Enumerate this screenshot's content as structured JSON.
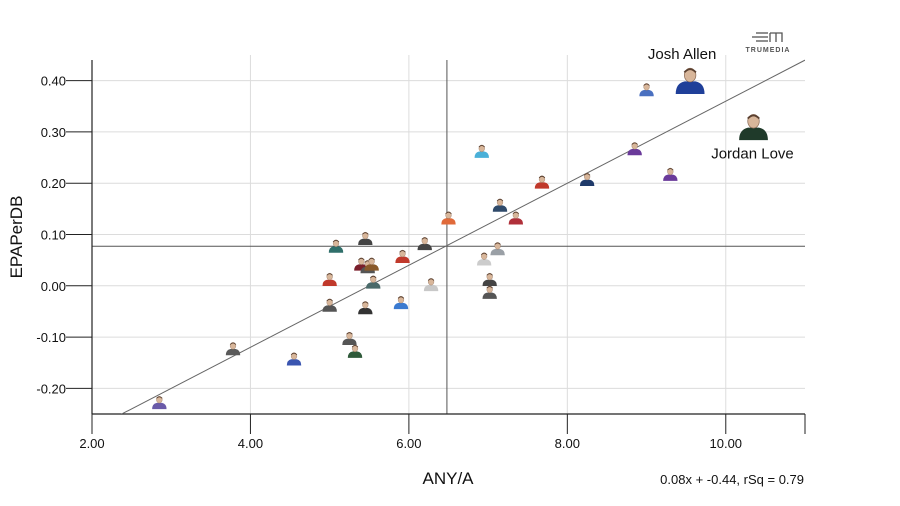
{
  "chart_data": {
    "type": "scatter",
    "xlabel": "ANY/A",
    "ylabel": "EPAPerDB",
    "xlim": [
      2.0,
      11.0
    ],
    "ylim": [
      -0.25,
      0.45
    ],
    "x_ticks": [
      2.0,
      4.0,
      6.0,
      8.0,
      10.0
    ],
    "x_tick_labels": [
      "2.00",
      "4.00",
      "6.00",
      "8.00",
      "10.00"
    ],
    "y_ticks": [
      -0.2,
      -0.1,
      0.0,
      0.1,
      0.2,
      0.3,
      0.4
    ],
    "y_tick_labels": [
      "-0.20",
      "-0.10",
      "0.00",
      "0.10",
      "0.20",
      "0.30",
      "0.40"
    ],
    "grid": true,
    "reference_lines": {
      "x_mean": 6.48,
      "y_mean": 0.077
    },
    "trendline": {
      "slope": 0.08,
      "intercept": -0.44
    },
    "equation_text": "0.08x + -0.44, rSq = 0.79",
    "brand": "TRUMEDIA",
    "highlighted": [
      {
        "name": "Josh Allen",
        "x": 9.55,
        "y": 0.395,
        "color": "#1f3f99"
      },
      {
        "name": "Jordan Love",
        "x": 10.35,
        "y": 0.305,
        "color": "#1f3a2a"
      }
    ],
    "points": [
      {
        "x": 2.85,
        "y": -0.23,
        "color": "#6a5aa8"
      },
      {
        "x": 3.78,
        "y": -0.125,
        "color": "#5a5a5a"
      },
      {
        "x": 4.55,
        "y": -0.145,
        "color": "#3a55b0"
      },
      {
        "x": 5.0,
        "y": -0.04,
        "color": "#555555"
      },
      {
        "x": 5.0,
        "y": 0.01,
        "color": "#c0392b"
      },
      {
        "x": 5.08,
        "y": 0.075,
        "color": "#2f6f6a"
      },
      {
        "x": 5.25,
        "y": -0.105,
        "color": "#555555"
      },
      {
        "x": 5.32,
        "y": -0.13,
        "color": "#2f5a3a"
      },
      {
        "x": 5.4,
        "y": 0.04,
        "color": "#7a1f2b"
      },
      {
        "x": 5.45,
        "y": 0.09,
        "color": "#444444"
      },
      {
        "x": 5.45,
        "y": -0.045,
        "color": "#333333"
      },
      {
        "x": 5.48,
        "y": 0.035,
        "color": "#555555"
      },
      {
        "x": 5.53,
        "y": 0.04,
        "color": "#8a5a2a"
      },
      {
        "x": 5.55,
        "y": 0.005,
        "color": "#4a6a6a"
      },
      {
        "x": 5.9,
        "y": -0.035,
        "color": "#3a7ad0"
      },
      {
        "x": 5.92,
        "y": 0.055,
        "color": "#c0392b"
      },
      {
        "x": 6.2,
        "y": 0.08,
        "color": "#444444"
      },
      {
        "x": 6.28,
        "y": 0.0,
        "color": "#c8c8c8"
      },
      {
        "x": 6.5,
        "y": 0.13,
        "color": "#e06a3a"
      },
      {
        "x": 6.92,
        "y": 0.26,
        "color": "#4ab0d8"
      },
      {
        "x": 6.95,
        "y": 0.05,
        "color": "#cccccc"
      },
      {
        "x": 7.02,
        "y": 0.01,
        "color": "#444444"
      },
      {
        "x": 7.02,
        "y": -0.015,
        "color": "#555555"
      },
      {
        "x": 7.12,
        "y": 0.07,
        "color": "#9aa0a6"
      },
      {
        "x": 7.15,
        "y": 0.155,
        "color": "#2f4a6a"
      },
      {
        "x": 7.35,
        "y": 0.13,
        "color": "#b0303a"
      },
      {
        "x": 7.68,
        "y": 0.2,
        "color": "#c0392b"
      },
      {
        "x": 8.25,
        "y": 0.205,
        "color": "#1f3a6a"
      },
      {
        "x": 8.85,
        "y": 0.265,
        "color": "#6a3a9a"
      },
      {
        "x": 9.0,
        "y": 0.38,
        "color": "#4a70c0"
      },
      {
        "x": 9.3,
        "y": 0.215,
        "color": "#6a3a9a"
      }
    ]
  }
}
